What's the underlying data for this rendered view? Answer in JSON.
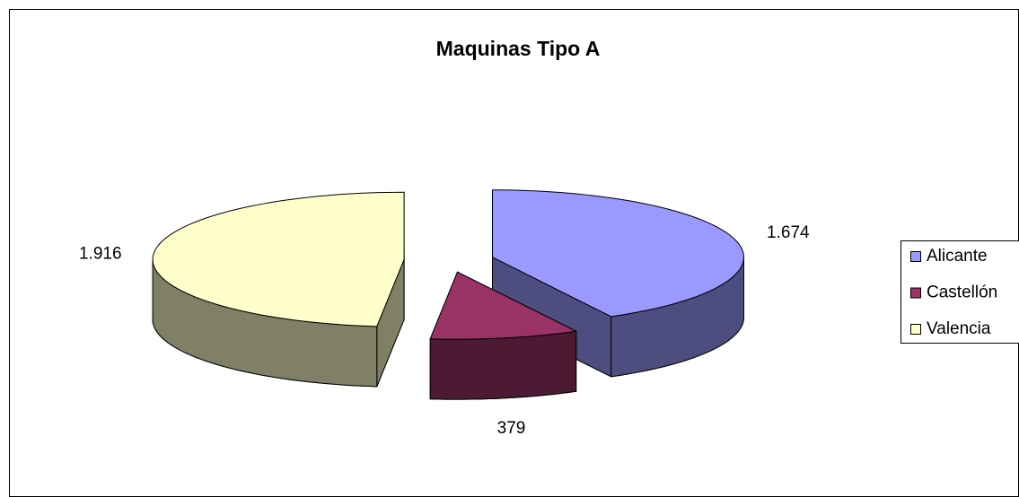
{
  "chart_data": {
    "type": "pie3d",
    "title": "Maquinas Tipo A",
    "categories": [
      "Alicante",
      "Castellón",
      "Valencia"
    ],
    "values": [
      1674,
      379,
      1916
    ],
    "value_labels": [
      "1.674",
      "379",
      "1.916"
    ],
    "colors": [
      "#9999ff",
      "#993366",
      "#ffffcc"
    ],
    "legend": "right"
  }
}
